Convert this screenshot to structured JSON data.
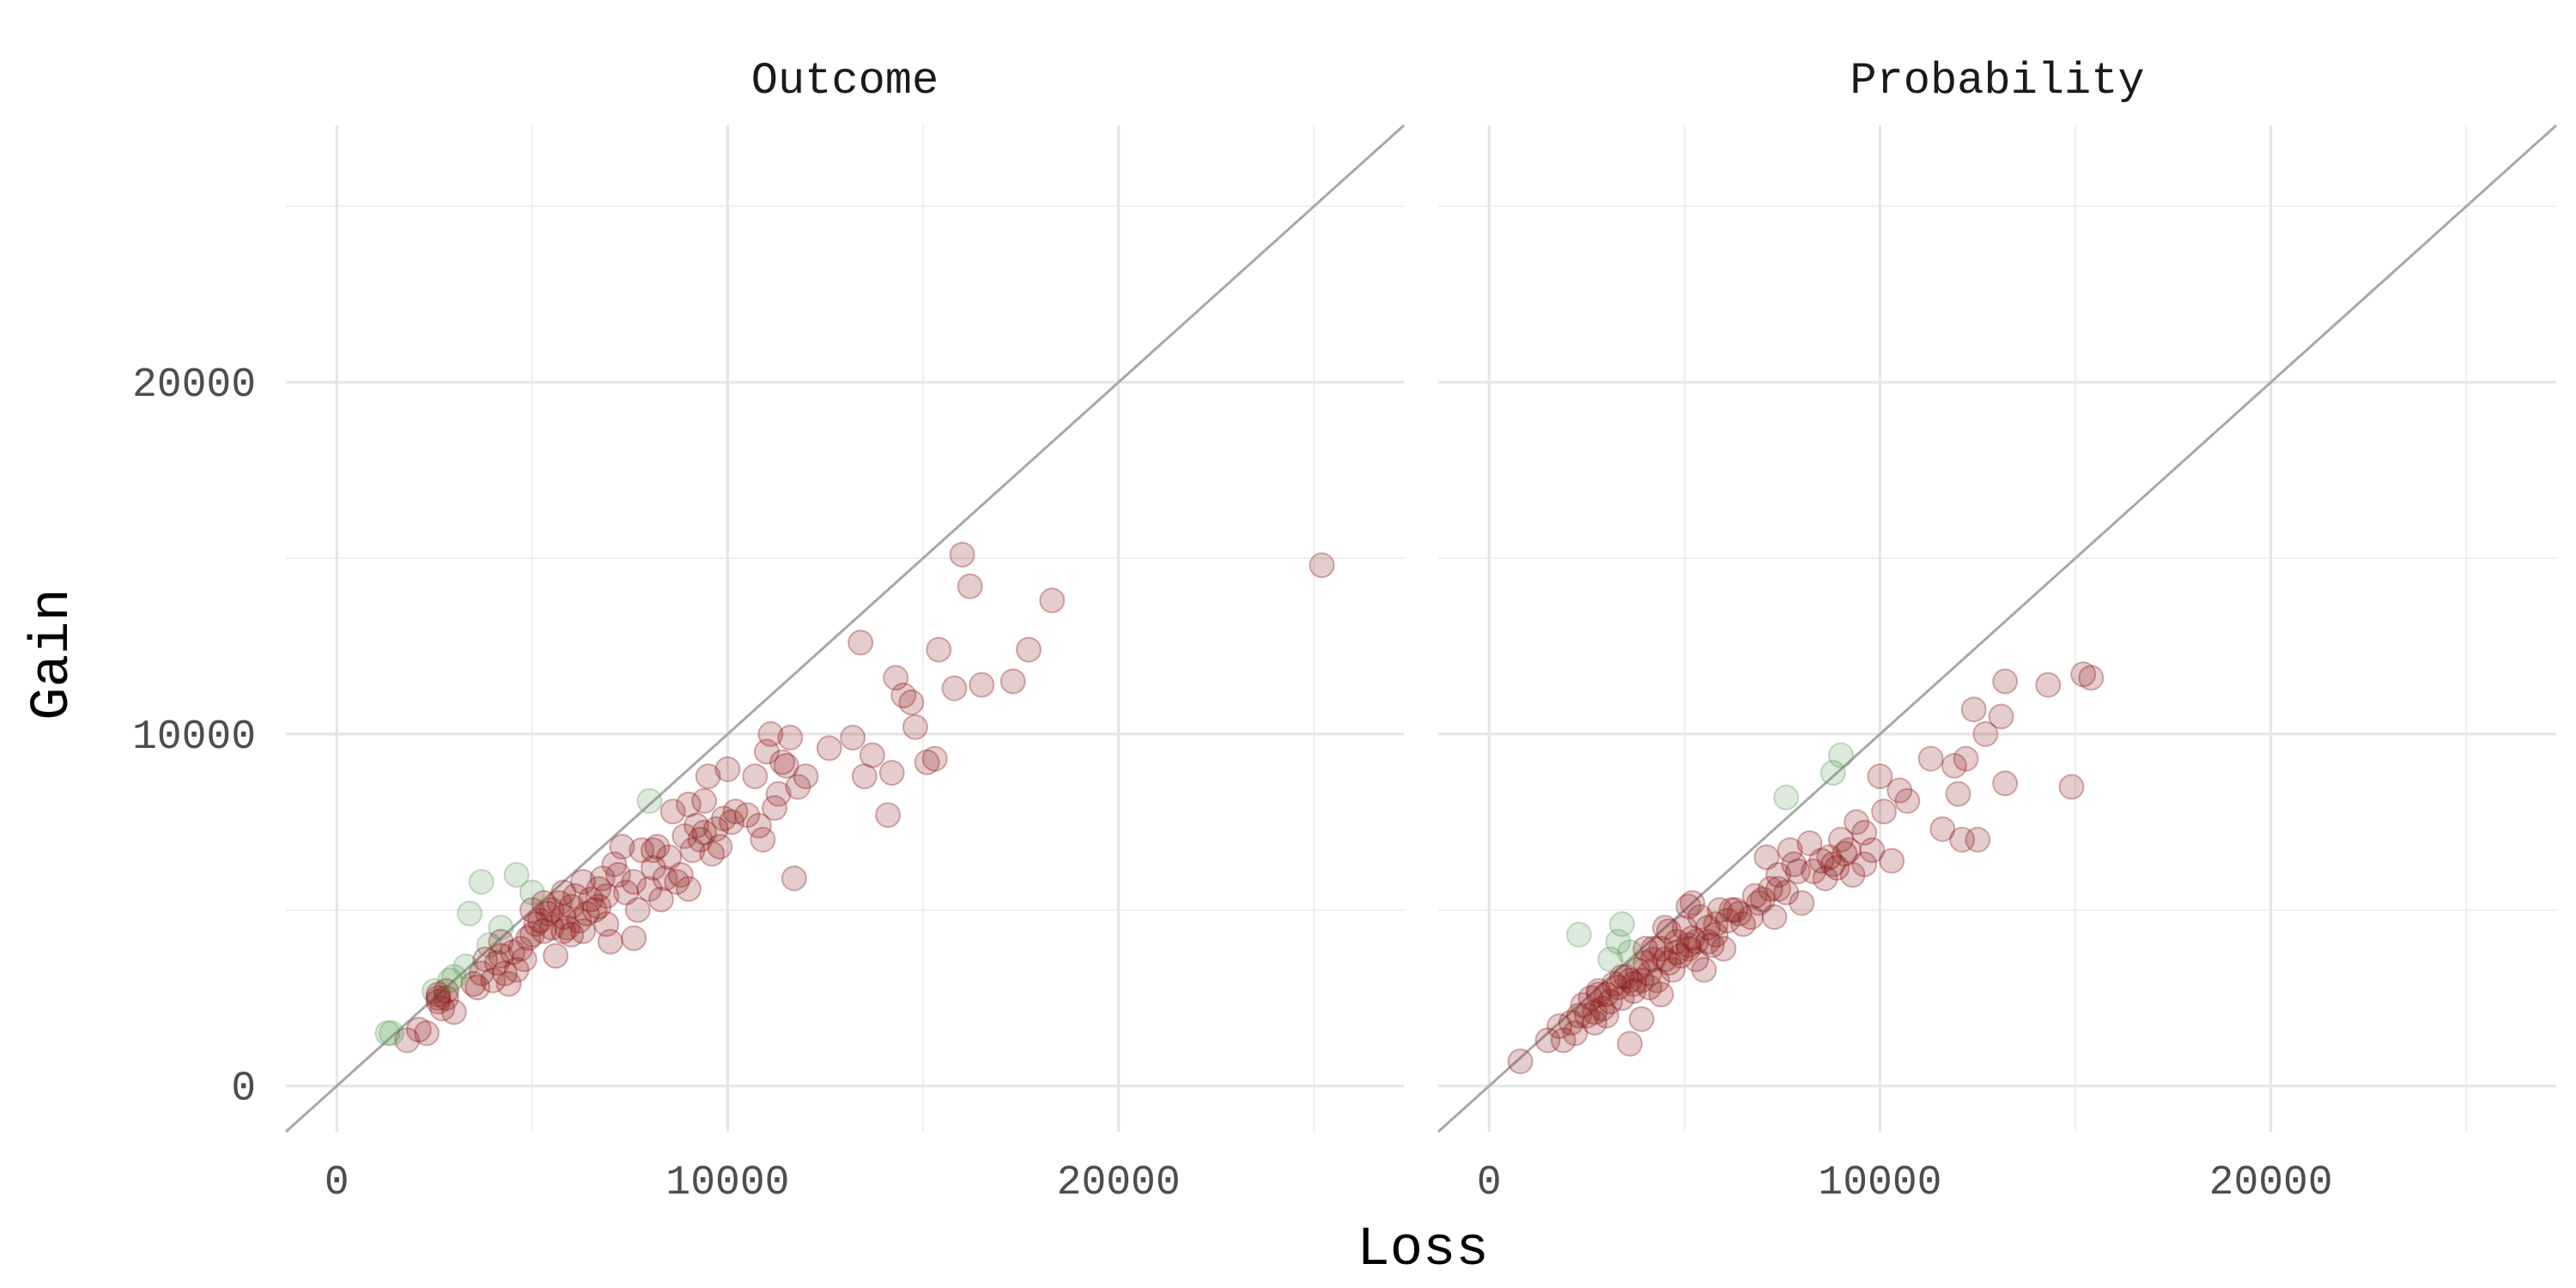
{
  "chart_data": {
    "type": "scatter",
    "xlabel": "Loss",
    "ylabel": "Gain",
    "xlim": [
      -1300,
      27300
    ],
    "ylim": [
      -1300,
      27300
    ],
    "x_ticks": [
      0,
      10000,
      20000
    ],
    "y_ticks": [
      0,
      10000,
      20000
    ],
    "grid": true,
    "reference_line": "y = x",
    "colors": {
      "above_line": "#5a9e5a",
      "below_line": "#8b1a1a",
      "reference_line": "#a8a8a8",
      "grid": "#e4e4e4"
    },
    "panels": [
      {
        "title": "Outcome",
        "points": [
          [
            1300,
            1500
          ],
          [
            1800,
            1300
          ],
          [
            2100,
            1600
          ],
          [
            2300,
            1500
          ],
          [
            2500,
            2700
          ],
          [
            2600,
            2400
          ],
          [
            2700,
            2200
          ],
          [
            2800,
            2500
          ],
          [
            3000,
            2100
          ],
          [
            2900,
            3000
          ],
          [
            3300,
            3400
          ],
          [
            3500,
            2900
          ],
          [
            3700,
            3200
          ],
          [
            3900,
            4000
          ],
          [
            4100,
            3500
          ],
          [
            4200,
            4500
          ],
          [
            4300,
            3200
          ],
          [
            4500,
            3800
          ],
          [
            4600,
            3300
          ],
          [
            4700,
            3900
          ],
          [
            4900,
            4200
          ],
          [
            5000,
            5000
          ],
          [
            5100,
            4600
          ],
          [
            5300,
            4400
          ],
          [
            5400,
            4900
          ],
          [
            5600,
            3700
          ],
          [
            5700,
            5200
          ],
          [
            5800,
            4800
          ],
          [
            5900,
            4500
          ],
          [
            6000,
            5100
          ],
          [
            6100,
            5400
          ],
          [
            6200,
            4700
          ],
          [
            6300,
            5800
          ],
          [
            6500,
            5300
          ],
          [
            6600,
            5000
          ],
          [
            6700,
            5600
          ],
          [
            6900,
            4600
          ],
          [
            7000,
            4100
          ],
          [
            7100,
            6300
          ],
          [
            7200,
            6000
          ],
          [
            7400,
            5500
          ],
          [
            7600,
            4200
          ],
          [
            7700,
            5000
          ],
          [
            7800,
            6700
          ],
          [
            8000,
            5600
          ],
          [
            8100,
            6200
          ],
          [
            8200,
            6800
          ],
          [
            8400,
            5900
          ],
          [
            8500,
            6500
          ],
          [
            8600,
            7800
          ],
          [
            8800,
            6000
          ],
          [
            8900,
            7100
          ],
          [
            9000,
            5600
          ],
          [
            9100,
            6700
          ],
          [
            9200,
            7400
          ],
          [
            9300,
            7000
          ],
          [
            9500,
            8800
          ],
          [
            9600,
            6600
          ],
          [
            9700,
            7300
          ],
          [
            9900,
            7600
          ],
          [
            10000,
            9000
          ],
          [
            10500,
            7700
          ],
          [
            10700,
            8800
          ],
          [
            10900,
            7000
          ],
          [
            11000,
            9500
          ],
          [
            11100,
            10000
          ],
          [
            11200,
            7900
          ],
          [
            11300,
            8300
          ],
          [
            11500,
            9100
          ],
          [
            11600,
            9900
          ],
          [
            11700,
            5900
          ],
          [
            11800,
            8500
          ],
          [
            12000,
            8800
          ],
          [
            12600,
            9600
          ],
          [
            13200,
            9900
          ],
          [
            13500,
            8800
          ],
          [
            13700,
            9400
          ],
          [
            14100,
            7700
          ],
          [
            14200,
            8900
          ],
          [
            14300,
            11600
          ],
          [
            14500,
            11100
          ],
          [
            14700,
            10900
          ],
          [
            14800,
            10200
          ],
          [
            15100,
            9200
          ],
          [
            15300,
            9300
          ],
          [
            15400,
            12400
          ],
          [
            15800,
            11300
          ],
          [
            16000,
            15100
          ],
          [
            16200,
            14200
          ],
          [
            16500,
            11400
          ],
          [
            17300,
            11500
          ],
          [
            17700,
            12400
          ],
          [
            18300,
            13800
          ],
          [
            25200,
            14800
          ],
          [
            13400,
            12600
          ],
          [
            9000,
            8000
          ],
          [
            9400,
            7200
          ],
          [
            10200,
            7800
          ],
          [
            6800,
            5900
          ],
          [
            8300,
            5300
          ],
          [
            7300,
            6800
          ],
          [
            6400,
            4900
          ],
          [
            5500,
            4500
          ],
          [
            4400,
            2900
          ],
          [
            4000,
            3000
          ],
          [
            3600,
            2800
          ],
          [
            5200,
            4700
          ],
          [
            6000,
            4300
          ],
          [
            8700,
            5800
          ],
          [
            10100,
            7500
          ],
          [
            4800,
            3600
          ],
          [
            6300,
            4400
          ],
          [
            7600,
            5800
          ],
          [
            9800,
            6800
          ],
          [
            11400,
            9200
          ],
          [
            3800,
            3600
          ],
          [
            5000,
            4300
          ],
          [
            6700,
            5100
          ],
          [
            9400,
            8100
          ],
          [
            10800,
            7400
          ],
          [
            4200,
            3700
          ],
          [
            5500,
            5000
          ],
          [
            6900,
            5400
          ],
          [
            8100,
            6700
          ],
          [
            5800,
            4400
          ],
          [
            2600,
            2500
          ],
          [
            1400,
            1500
          ],
          [
            2600,
            2600
          ],
          [
            2800,
            2700
          ],
          [
            3000,
            3100
          ],
          [
            3400,
            4900
          ],
          [
            3700,
            5800
          ],
          [
            4200,
            4100
          ],
          [
            4600,
            6000
          ],
          [
            5000,
            5500
          ],
          [
            5300,
            5200
          ],
          [
            5800,
            5500
          ],
          [
            8000,
            8100
          ]
        ],
        "point_classes": "above_line when gain > loss, else below_line"
      },
      {
        "title": "Probability",
        "points": [
          [
            800,
            700
          ],
          [
            1500,
            1300
          ],
          [
            1800,
            1700
          ],
          [
            1900,
            1300
          ],
          [
            2100,
            1800
          ],
          [
            2200,
            1500
          ],
          [
            2400,
            2300
          ],
          [
            2500,
            2000
          ],
          [
            2700,
            1800
          ],
          [
            2800,
            2600
          ],
          [
            2900,
            2200
          ],
          [
            3000,
            2000
          ],
          [
            3100,
            2400
          ],
          [
            3300,
            2800
          ],
          [
            3400,
            2500
          ],
          [
            3500,
            3100
          ],
          [
            3600,
            1200
          ],
          [
            3700,
            2700
          ],
          [
            3800,
            3300
          ],
          [
            3900,
            1900
          ],
          [
            4000,
            3500
          ],
          [
            4100,
            2800
          ],
          [
            4200,
            3900
          ],
          [
            4300,
            3000
          ],
          [
            4400,
            2600
          ],
          [
            4500,
            3600
          ],
          [
            4600,
            4400
          ],
          [
            4700,
            3300
          ],
          [
            4800,
            4100
          ],
          [
            4900,
            3700
          ],
          [
            5000,
            4500
          ],
          [
            5100,
            3900
          ],
          [
            5200,
            4200
          ],
          [
            5300,
            3600
          ],
          [
            5400,
            4800
          ],
          [
            5500,
            3300
          ],
          [
            5600,
            4500
          ],
          [
            5700,
            4000
          ],
          [
            5800,
            4300
          ],
          [
            5900,
            5000
          ],
          [
            6000,
            3900
          ],
          [
            6100,
            4700
          ],
          [
            6300,
            5000
          ],
          [
            6500,
            4600
          ],
          [
            6700,
            4800
          ],
          [
            6800,
            5400
          ],
          [
            7000,
            5300
          ],
          [
            7100,
            6500
          ],
          [
            7200,
            5600
          ],
          [
            7300,
            4800
          ],
          [
            7400,
            6000
          ],
          [
            7600,
            5500
          ],
          [
            7700,
            6700
          ],
          [
            7800,
            6300
          ],
          [
            8000,
            5200
          ],
          [
            8200,
            6900
          ],
          [
            8300,
            6100
          ],
          [
            8500,
            6400
          ],
          [
            8600,
            5900
          ],
          [
            8700,
            6500
          ],
          [
            8900,
            6200
          ],
          [
            9000,
            7000
          ],
          [
            9100,
            6600
          ],
          [
            9300,
            6000
          ],
          [
            9400,
            7500
          ],
          [
            9600,
            7200
          ],
          [
            9800,
            6700
          ],
          [
            10000,
            8800
          ],
          [
            10100,
            7800
          ],
          [
            10300,
            6400
          ],
          [
            10500,
            8400
          ],
          [
            10700,
            8100
          ],
          [
            11300,
            9300
          ],
          [
            11600,
            7300
          ],
          [
            11900,
            9100
          ],
          [
            12000,
            8300
          ],
          [
            12100,
            7000
          ],
          [
            12200,
            9300
          ],
          [
            12400,
            10700
          ],
          [
            12500,
            7000
          ],
          [
            12700,
            10000
          ],
          [
            13100,
            10500
          ],
          [
            13200,
            11500
          ],
          [
            13200,
            8600
          ],
          [
            14300,
            11400
          ],
          [
            14900,
            8500
          ],
          [
            15200,
            11700
          ],
          [
            15400,
            11600
          ],
          [
            2700,
            2100
          ],
          [
            3200,
            2900
          ],
          [
            3600,
            3000
          ],
          [
            4100,
            3200
          ],
          [
            4400,
            3900
          ],
          [
            5100,
            4000
          ],
          [
            5600,
            4100
          ],
          [
            6200,
            5000
          ],
          [
            7400,
            5600
          ],
          [
            8800,
            6300
          ],
          [
            9600,
            6300
          ],
          [
            3000,
            2600
          ],
          [
            3900,
            3000
          ],
          [
            4600,
            3500
          ],
          [
            5300,
            4100
          ],
          [
            6900,
            5200
          ],
          [
            4200,
            3600
          ],
          [
            5800,
            4600
          ],
          [
            7900,
            6100
          ],
          [
            9200,
            6700
          ],
          [
            2300,
            2000
          ],
          [
            3400,
            3100
          ],
          [
            4800,
            3800
          ],
          [
            6400,
            4900
          ],
          [
            2300,
            4300
          ],
          [
            2600,
            2500
          ],
          [
            2800,
            2700
          ],
          [
            3100,
            3600
          ],
          [
            3300,
            4100
          ],
          [
            3400,
            4600
          ],
          [
            3600,
            3800
          ],
          [
            3700,
            2900
          ],
          [
            4000,
            3900
          ],
          [
            4500,
            4500
          ],
          [
            5100,
            5100
          ],
          [
            5200,
            5200
          ],
          [
            7600,
            8200
          ],
          [
            8800,
            8900
          ],
          [
            9000,
            9400
          ]
        ],
        "point_classes": "above_line when gain > loss, else below_line"
      }
    ]
  }
}
